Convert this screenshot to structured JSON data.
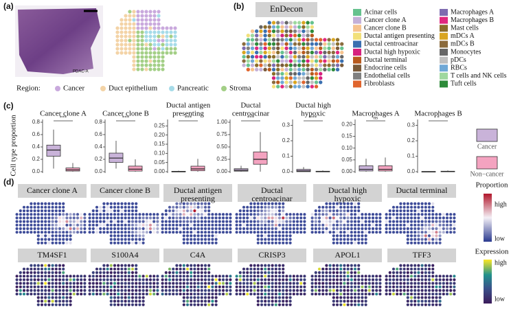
{
  "panel_a": {
    "label": "(a)",
    "image_label": "PDAC-A",
    "legend_title": "Region:",
    "regions": [
      {
        "name": "Cancer",
        "color": "#c9a9dd"
      },
      {
        "name": "Duct epithelium",
        "color": "#f3d3a6"
      },
      {
        "name": "Pancreatic",
        "color": "#a6dbe8"
      },
      {
        "name": "Stroma",
        "color": "#a3cf86"
      }
    ]
  },
  "panel_b": {
    "label": "(b)",
    "title": "EnDecon",
    "cell_types": [
      {
        "name": "Acinar cells",
        "color": "#66c28e"
      },
      {
        "name": "Cancer clone A",
        "color": "#c4b0d8"
      },
      {
        "name": "Cancer clone B",
        "color": "#f6c38f"
      },
      {
        "name": "Ductal antigen presenting",
        "color": "#f2e07a"
      },
      {
        "name": "Ductal centroacinar",
        "color": "#3a6fb0"
      },
      {
        "name": "Ductal high hypoxic",
        "color": "#d6217e"
      },
      {
        "name": "Ductal terminal",
        "color": "#b85a1e"
      },
      {
        "name": "Endocrine cells",
        "color": "#7a5a3a"
      },
      {
        "name": "Endothelial cells",
        "color": "#7f7f7f"
      },
      {
        "name": "Fibroblasts",
        "color": "#e0652d"
      },
      {
        "name": "Macrophages A",
        "color": "#7e6bb0"
      },
      {
        "name": "Macrophages B",
        "color": "#e0287f"
      },
      {
        "name": "Mast cells",
        "color": "#8a6d2b"
      },
      {
        "name": "mDCs A",
        "color": "#d9a520"
      },
      {
        "name": "mDCs B",
        "color": "#8b6b3d"
      },
      {
        "name": "Monocytes",
        "color": "#666666"
      },
      {
        "name": "pDCs",
        "color": "#bfbfbf"
      },
      {
        "name": "RBCs",
        "color": "#6fa8d6"
      },
      {
        "name": "T cells and NK cells",
        "color": "#9fd89f"
      },
      {
        "name": "Tuft cells",
        "color": "#2e8b3a"
      }
    ]
  },
  "panel_c": {
    "label": "(c)",
    "y_label": "Cell type proportion",
    "groups": [
      {
        "name": "Cancer",
        "color": "#c9b3d9"
      },
      {
        "name": "Non−cancer",
        "color": "#f4a3c0"
      }
    ],
    "plots": [
      {
        "title": [
          "Cancer clone A"
        ],
        "significance": "***",
        "ylim": [
          0,
          0.8
        ],
        "yticks": [
          {
            "value": 0,
            "label": "0.0"
          },
          {
            "value": 0.2,
            "label": "0.2"
          },
          {
            "value": 0.4,
            "label": "0.4"
          },
          {
            "value": 0.6,
            "label": "0.6"
          },
          {
            "value": 0.8,
            "label": "0.8"
          }
        ],
        "boxes": [
          {
            "low": 0.05,
            "q1": 0.25,
            "median": 0.35,
            "q3": 0.43,
            "high": 0.68
          },
          {
            "low": 0,
            "q1": 0.01,
            "median": 0.03,
            "q3": 0.06,
            "high": 0.14
          }
        ]
      },
      {
        "title": [
          "Cancer clone B"
        ],
        "significance": "***",
        "ylim": [
          0,
          0.8
        ],
        "yticks": [
          {
            "value": 0,
            "label": "0.0"
          },
          {
            "value": 0.2,
            "label": "0.2"
          },
          {
            "value": 0.4,
            "label": "0.4"
          },
          {
            "value": 0.6,
            "label": "0.6"
          },
          {
            "value": 0.8,
            "label": "0.8"
          }
        ],
        "boxes": [
          {
            "low": 0.05,
            "q1": 0.15,
            "median": 0.22,
            "q3": 0.3,
            "high": 0.5
          },
          {
            "low": 0,
            "q1": 0.01,
            "median": 0.04,
            "q3": 0.09,
            "high": 0.2
          }
        ]
      },
      {
        "title": [
          "Ductal antigen",
          "presenting"
        ],
        "significance": "***",
        "ylim": [
          0,
          0.27
        ],
        "yticks": [
          {
            "value": 0,
            "label": "0.00"
          },
          {
            "value": 0.05,
            "label": "0.05"
          },
          {
            "value": 0.1,
            "label": "0.10"
          },
          {
            "value": 0.15,
            "label": "0.15"
          },
          {
            "value": 0.2,
            "label": "0.20"
          },
          {
            "value": 0.25,
            "label": "0.25"
          }
        ],
        "boxes": [
          {
            "low": 0,
            "q1": 0,
            "median": 0,
            "q3": 0.002,
            "high": 0.005
          },
          {
            "low": 0,
            "q1": 0.005,
            "median": 0.015,
            "q3": 0.03,
            "high": 0.07
          }
        ]
      },
      {
        "title": [
          "Ductal",
          "centroacinar"
        ],
        "significance": "***",
        "ylim": [
          0,
          1
        ],
        "yticks": [
          {
            "value": 0,
            "label": "0.00"
          },
          {
            "value": 0.25,
            "label": "0.25"
          },
          {
            "value": 0.5,
            "label": "0.50"
          },
          {
            "value": 0.75,
            "label": "0.75"
          },
          {
            "value": 1,
            "label": "1.00"
          }
        ],
        "boxes": [
          {
            "low": 0,
            "q1": 0.01,
            "median": 0.03,
            "q3": 0.06,
            "high": 0.12
          },
          {
            "low": 0,
            "q1": 0.15,
            "median": 0.25,
            "q3": 0.4,
            "high": 0.8
          }
        ]
      },
      {
        "title": [
          "Ductal high",
          "hypoxic"
        ],
        "significance": "***",
        "ylim": [
          0,
          0.32
        ],
        "yticks": [
          {
            "value": 0,
            "label": "0.0"
          },
          {
            "value": 0.1,
            "label": "0.1"
          },
          {
            "value": 0.2,
            "label": "0.2"
          },
          {
            "value": 0.3,
            "label": "0.3"
          }
        ],
        "boxes": [
          {
            "low": 0,
            "q1": 0,
            "median": 0.005,
            "q3": 0.015,
            "high": 0.03
          },
          {
            "low": 0,
            "q1": 0,
            "median": 0,
            "q3": 0.003,
            "high": 0.008
          }
        ]
      },
      {
        "title": [
          "Macrophages A"
        ],
        "significance": "ns",
        "ylim": [
          0,
          0.21
        ],
        "yticks": [
          {
            "value": 0,
            "label": "0.00"
          },
          {
            "value": 0.05,
            "label": "0.05"
          },
          {
            "value": 0.1,
            "label": "0.10"
          },
          {
            "value": 0.15,
            "label": "0.15"
          },
          {
            "value": 0.2,
            "label": "0.20"
          }
        ],
        "boxes": [
          {
            "low": 0,
            "q1": 0.003,
            "median": 0.01,
            "q3": 0.025,
            "high": 0.055
          },
          {
            "low": 0,
            "q1": 0.003,
            "median": 0.01,
            "q3": 0.025,
            "high": 0.06
          }
        ]
      },
      {
        "title": [
          "Macrophages B"
        ],
        "significance": "*",
        "ylim": [
          0,
          0.32
        ],
        "yticks": [
          {
            "value": 0,
            "label": "0.0"
          },
          {
            "value": 0.1,
            "label": "0.1"
          },
          {
            "value": 0.2,
            "label": "0.2"
          },
          {
            "value": 0.3,
            "label": "0.3"
          }
        ],
        "boxes": [
          {
            "low": 0,
            "q1": 0,
            "median": 0,
            "q3": 0.001,
            "high": 0.003
          },
          {
            "low": 0,
            "q1": 0,
            "median": 0.001,
            "q3": 0.003,
            "high": 0.008
          }
        ]
      }
    ]
  },
  "panel_d": {
    "label": "(d)",
    "proportion_titles": [
      [
        "Cancer clone A"
      ],
      [
        "Cancer clone B"
      ],
      [
        "Ductal antigen",
        "presenting"
      ],
      [
        "Ductal",
        "centroacinar"
      ],
      [
        "Ductal high",
        "hypoxic"
      ],
      [
        "Ductal terminal"
      ]
    ],
    "gene_titles": [
      "TM4SF1",
      "S100A4",
      "C4A",
      "CRISP3",
      "APOL1",
      "TFF3"
    ],
    "proportion_legend": {
      "title": "Proportion",
      "high": "high",
      "low": "low"
    },
    "expression_legend": {
      "title": "Expression",
      "high": "high",
      "low": "low"
    }
  }
}
